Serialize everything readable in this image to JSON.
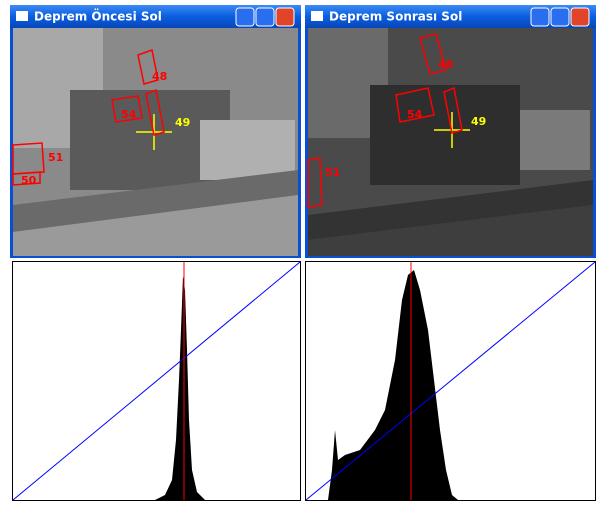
{
  "windows": [
    {
      "title": "Deprem Öncesi Sol",
      "markers": [
        "48",
        "54",
        "49",
        "51",
        "50"
      ]
    },
    {
      "title": "Deprem Sonrası Sol",
      "markers": [
        "48",
        "54",
        "49",
        "51"
      ]
    }
  ]
}
